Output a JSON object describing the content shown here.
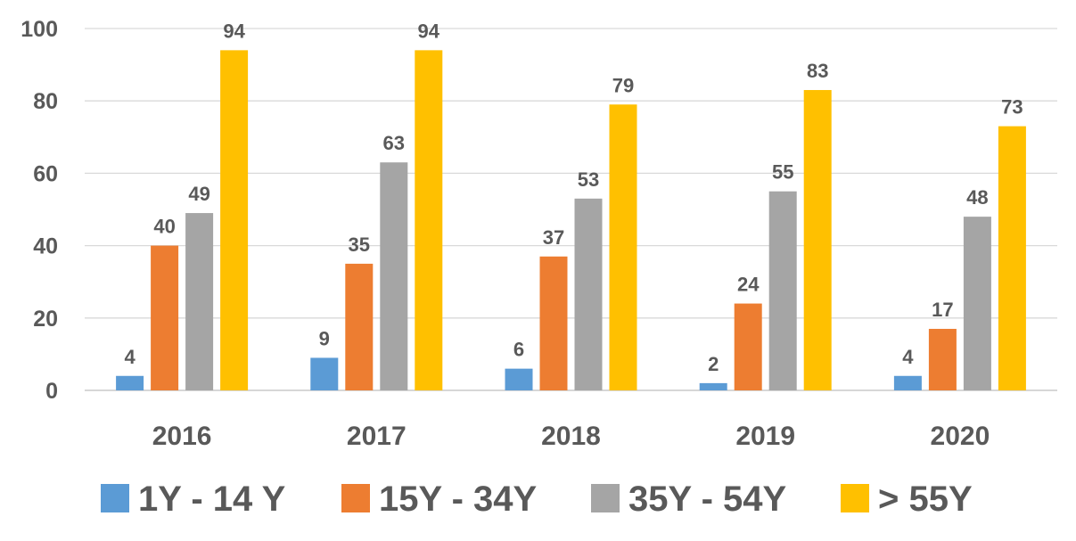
{
  "chart_data": {
    "type": "bar",
    "title": "",
    "xlabel": "",
    "ylabel": "",
    "ylim": [
      0,
      100
    ],
    "yticks": [
      0,
      20,
      40,
      60,
      80,
      100
    ],
    "grid": true,
    "legend_position": "bottom",
    "categories": [
      "2016",
      "2017",
      "2018",
      "2019",
      "2020"
    ],
    "series": [
      {
        "name": "1Y - 14 Y",
        "color": "#5B9BD5",
        "values": [
          4,
          9,
          6,
          2,
          4
        ]
      },
      {
        "name": "15Y - 34Y",
        "color": "#ED7D31",
        "values": [
          40,
          35,
          37,
          24,
          17
        ]
      },
      {
        "name": "35Y - 54Y",
        "color": "#A5A5A5",
        "values": [
          49,
          63,
          53,
          55,
          48
        ]
      },
      {
        "name": "> 55Y",
        "color": "#FFC000",
        "values": [
          94,
          94,
          79,
          83,
          73
        ]
      }
    ]
  }
}
